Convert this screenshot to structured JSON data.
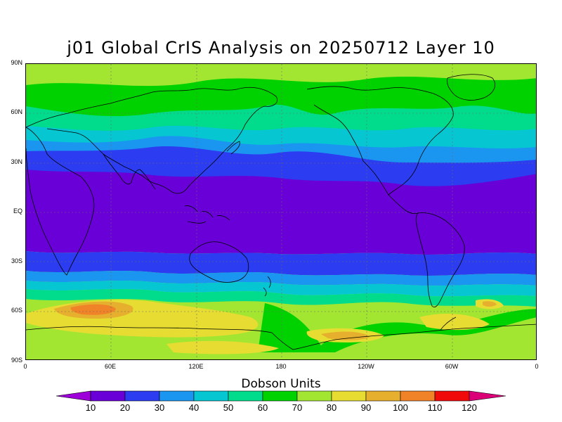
{
  "title": "j01 Global CrIS Analysis on 20250712 Layer 10",
  "colorbar": {
    "title": "Dobson Units",
    "ticks": [
      "10",
      "20",
      "30",
      "40",
      "50",
      "60",
      "70",
      "80",
      "90",
      "100",
      "110",
      "120"
    ],
    "colors": [
      "#9d00d8",
      "#6a00d8",
      "#2c3cf0",
      "#1a96f0",
      "#06c6d2",
      "#00dc8c",
      "#00d200",
      "#a2e632",
      "#e6dc32",
      "#e6af2d",
      "#f08228",
      "#f00a0a",
      "#dc0078"
    ]
  },
  "axes": {
    "lat_labels": [
      "90N",
      "60N",
      "30N",
      "EQ",
      "30S",
      "60S",
      "90S"
    ],
    "lon_labels": [
      "0",
      "60E",
      "120E",
      "180",
      "120W",
      "60W",
      "0"
    ]
  },
  "map_layers": {
    "background": "#a2e632",
    "band_colors": {
      "tropics": "#6a00d8",
      "subtropic": "#2c3cf0",
      "mid": "#1a96f0",
      "cyan": "#06c6d2",
      "teal": "#00dc8c",
      "green": "#00d200",
      "lime": "#a2e632",
      "yellow": "#e6dc32",
      "orange": "#e6af2d",
      "dark_orange": "#f08228"
    }
  }
}
